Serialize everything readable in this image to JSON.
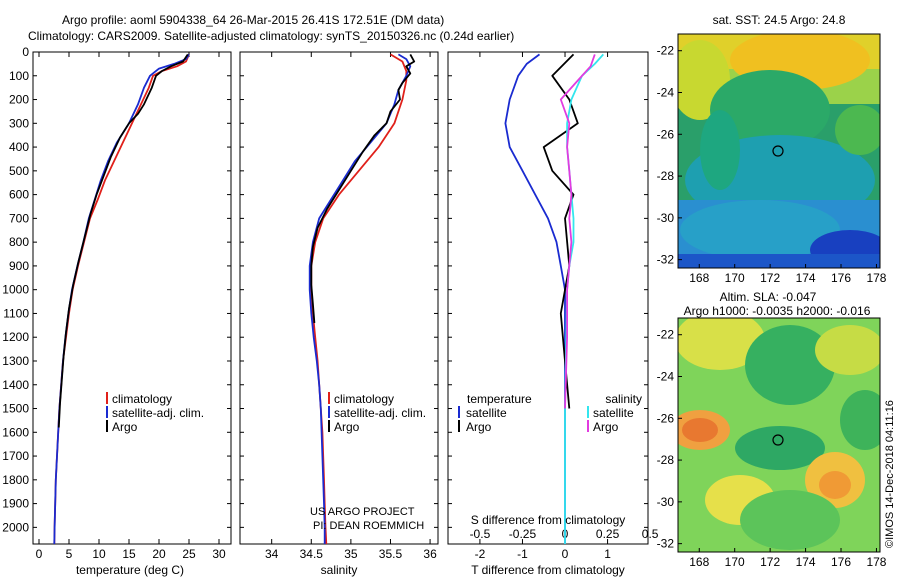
{
  "title": {
    "line1": "Argo profile: aoml 5904338_64 26-Mar-2015 26.41S 172.51E (DM data)",
    "line2": "Climatology: CARS2009. Satellite-adjusted climatology: synTS_20150326.nc (0.24d earlier)"
  },
  "watermark": "©IMOS 14-Dec-2018 04:11:16",
  "colors": {
    "climatology": "#e0201a",
    "satellite": "#1a2bd0",
    "argo": "#000000",
    "sat_salinity": "#33e6ee",
    "argo_salinity": "#e23be0"
  },
  "chart_data": [
    {
      "type": "line",
      "id": "temperature",
      "xlabel": "temperature (deg C)",
      "xlim": [
        -1,
        32
      ],
      "ylim": [
        2070,
        0
      ],
      "xticks": [
        0,
        5,
        10,
        15,
        20,
        25,
        30
      ],
      "yticks": [
        0,
        100,
        200,
        300,
        400,
        500,
        600,
        700,
        800,
        900,
        1000,
        1100,
        1200,
        1300,
        1400,
        1500,
        1600,
        1700,
        1800,
        1900,
        2000
      ],
      "legend": [
        "climatology",
        "satellite-adj. clim.",
        "Argo"
      ],
      "series": [
        {
          "name": "climatology",
          "color": "#e0201a",
          "points": [
            [
              25,
              10
            ],
            [
              24.5,
              40
            ],
            [
              23,
              60
            ],
            [
              20.5,
              80
            ],
            [
              19,
              100
            ],
            [
              18.3,
              150
            ],
            [
              17,
              220
            ],
            [
              15.5,
              300
            ],
            [
              14,
              380
            ],
            [
              12.5,
              460
            ],
            [
              11,
              540
            ],
            [
              9.8,
              620
            ],
            [
              8.5,
              700
            ],
            [
              7.5,
              800
            ],
            [
              6.5,
              900
            ],
            [
              5.6,
              1000
            ],
            [
              5,
              1100
            ],
            [
              4.5,
              1200
            ],
            [
              4,
              1300
            ],
            [
              3.7,
              1400
            ],
            [
              3.4,
              1500
            ],
            [
              3.2,
              1600
            ],
            [
              3,
              1700
            ],
            [
              2.8,
              1800
            ],
            [
              2.7,
              1900
            ],
            [
              2.6,
              2000
            ],
            [
              2.55,
              2070
            ]
          ]
        },
        {
          "name": "satellite",
          "color": "#1a2bd0",
          "points": [
            [
              25,
              10
            ],
            [
              24.5,
              30
            ],
            [
              22.5,
              50
            ],
            [
              20,
              70
            ],
            [
              18.5,
              100
            ],
            [
              17.5,
              150
            ],
            [
              16.5,
              220
            ],
            [
              15,
              300
            ],
            [
              13,
              380
            ],
            [
              11.5,
              460
            ],
            [
              10.3,
              540
            ],
            [
              9.3,
              620
            ],
            [
              8.3,
              700
            ],
            [
              7.4,
              800
            ],
            [
              6.4,
              900
            ],
            [
              5.5,
              1000
            ],
            [
              4.9,
              1100
            ],
            [
              4.4,
              1200
            ],
            [
              4,
              1300
            ],
            [
              3.7,
              1400
            ],
            [
              3.4,
              1500
            ],
            [
              3.2,
              1600
            ],
            [
              3,
              1700
            ],
            [
              2.8,
              1800
            ],
            [
              2.7,
              1900
            ],
            [
              2.6,
              2000
            ],
            [
              2.55,
              2070
            ]
          ]
        },
        {
          "name": "Argo",
          "color": "#000000",
          "points": [
            [
              24.8,
              10
            ],
            [
              24,
              40
            ],
            [
              22,
              60
            ],
            [
              20.5,
              80
            ],
            [
              19.5,
              100
            ],
            [
              18.8,
              150
            ],
            [
              17.5,
              220
            ],
            [
              16.5,
              260
            ],
            [
              15,
              300
            ],
            [
              13.5,
              360
            ],
            [
              12,
              440
            ],
            [
              10.8,
              520
            ],
            [
              9.6,
              600
            ],
            [
              8.6,
              680
            ],
            [
              7.6,
              780
            ],
            [
              6.6,
              880
            ],
            [
              5.7,
              980
            ],
            [
              5,
              1080
            ],
            [
              4.5,
              1180
            ],
            [
              4.1,
              1280
            ],
            [
              3.8,
              1380
            ],
            [
              3.5,
              1480
            ],
            [
              3.3,
              1580
            ]
          ]
        }
      ]
    },
    {
      "type": "line",
      "id": "salinity",
      "xlabel": "salinity",
      "xlim": [
        33.6,
        36.1
      ],
      "ylim": [
        2070,
        0
      ],
      "xticks": [
        34,
        34.5,
        35,
        35.5,
        36
      ],
      "legend": [
        "climatology",
        "satellite-adj. clim.",
        "Argo"
      ],
      "series": [
        {
          "name": "climatology",
          "color": "#e0201a",
          "points": [
            [
              35.5,
              10
            ],
            [
              35.65,
              40
            ],
            [
              35.7,
              80
            ],
            [
              35.7,
              120
            ],
            [
              35.65,
              200
            ],
            [
              35.55,
              300
            ],
            [
              35.35,
              400
            ],
            [
              35.1,
              500
            ],
            [
              34.85,
              600
            ],
            [
              34.65,
              700
            ],
            [
              34.55,
              800
            ],
            [
              34.5,
              900
            ],
            [
              34.5,
              1000
            ],
            [
              34.52,
              1100
            ],
            [
              34.55,
              1200
            ],
            [
              34.58,
              1300
            ],
            [
              34.6,
              1400
            ],
            [
              34.62,
              1500
            ],
            [
              34.64,
              1600
            ],
            [
              34.65,
              1700
            ],
            [
              34.66,
              1800
            ],
            [
              34.67,
              1900
            ],
            [
              34.68,
              2000
            ],
            [
              34.69,
              2070
            ]
          ]
        },
        {
          "name": "satellite",
          "color": "#1a2bd0",
          "points": [
            [
              35.6,
              10
            ],
            [
              35.7,
              30
            ],
            [
              35.75,
              60
            ],
            [
              35.7,
              100
            ],
            [
              35.6,
              160
            ],
            [
              35.55,
              220
            ],
            [
              35.45,
              300
            ],
            [
              35.25,
              380
            ],
            [
              35.05,
              460
            ],
            [
              34.9,
              540
            ],
            [
              34.75,
              620
            ],
            [
              34.6,
              700
            ],
            [
              34.52,
              800
            ],
            [
              34.48,
              900
            ],
            [
              34.48,
              1000
            ],
            [
              34.5,
              1100
            ],
            [
              34.53,
              1200
            ],
            [
              34.57,
              1300
            ],
            [
              34.6,
              1400
            ],
            [
              34.62,
              1500
            ],
            [
              34.63,
              1600
            ],
            [
              34.64,
              1700
            ],
            [
              34.65,
              1800
            ],
            [
              34.66,
              1900
            ],
            [
              34.67,
              2000
            ],
            [
              34.67,
              2070
            ]
          ]
        },
        {
          "name": "Argo",
          "color": "#000000",
          "points": [
            [
              35.75,
              10
            ],
            [
              35.8,
              40
            ],
            [
              35.7,
              60
            ],
            [
              35.75,
              90
            ],
            [
              35.65,
              130
            ],
            [
              35.6,
              160
            ],
            [
              35.62,
              200
            ],
            [
              35.5,
              250
            ],
            [
              35.45,
              300
            ],
            [
              35.3,
              350
            ],
            [
              35.15,
              420
            ],
            [
              35.0,
              500
            ],
            [
              34.85,
              580
            ],
            [
              34.7,
              660
            ],
            [
              34.58,
              740
            ],
            [
              34.52,
              820
            ],
            [
              34.5,
              900
            ],
            [
              34.5,
              980
            ],
            [
              34.52,
              1060
            ],
            [
              34.54,
              1140
            ]
          ]
        }
      ]
    },
    {
      "type": "line",
      "id": "difference",
      "xlabel": "T difference from climatology",
      "xlabel2": "S difference from climatology",
      "xlim": [
        -2.75,
        1.95
      ],
      "ylim": [
        2070,
        0
      ],
      "xticks": [
        -2,
        -1,
        0,
        1
      ],
      "xticks_s": [
        {
          "pos": -2,
          "label": "-0.5"
        },
        {
          "pos": -1,
          "label": "-0.25"
        },
        {
          "pos": 0,
          "label": "0"
        },
        {
          "pos": 1,
          "label": "0.25"
        },
        {
          "pos": 2,
          "label": "0.5"
        }
      ],
      "legend_temperature": {
        "title": "temperature",
        "items": [
          "satellite",
          "Argo"
        ]
      },
      "legend_salinity": {
        "title": "salinity",
        "items": [
          "satellite",
          "Argo"
        ]
      },
      "series": [
        {
          "name": "T satellite",
          "color": "#1a2bd0",
          "points": [
            [
              -0.6,
              10
            ],
            [
              -0.9,
              50
            ],
            [
              -1.1,
              100
            ],
            [
              -1.3,
              200
            ],
            [
              -1.4,
              300
            ],
            [
              -1.3,
              400
            ],
            [
              -1.0,
              500
            ],
            [
              -0.7,
              600
            ],
            [
              -0.4,
              700
            ],
            [
              -0.2,
              800
            ],
            [
              -0.1,
              900
            ],
            [
              0,
              1000
            ],
            [
              0,
              2070
            ]
          ]
        },
        {
          "name": "T Argo",
          "color": "#000000",
          "points": [
            [
              0.2,
              10
            ],
            [
              -0.3,
              100
            ],
            [
              0.1,
              200
            ],
            [
              0.3,
              300
            ],
            [
              -0.5,
              400
            ],
            [
              -0.3,
              500
            ],
            [
              0.2,
              600
            ],
            [
              0,
              700
            ],
            [
              0.1,
              900
            ],
            [
              -0.1,
              1100
            ],
            [
              0,
              1300
            ],
            [
              0.1,
              1500
            ]
          ]
        },
        {
          "name": "S satellite",
          "color": "#33e6ee",
          "points": [
            [
              0.9,
              10
            ],
            [
              0.7,
              50
            ],
            [
              0.4,
              100
            ],
            [
              0.15,
              200
            ],
            [
              0.05,
              300
            ],
            [
              0.05,
              400
            ],
            [
              0.1,
              500
            ],
            [
              0.15,
              600
            ],
            [
              0.2,
              700
            ],
            [
              0.2,
              800
            ],
            [
              0.1,
              900
            ],
            [
              0.05,
              1000
            ],
            [
              0,
              1500
            ],
            [
              0,
              2070
            ]
          ]
        },
        {
          "name": "S Argo",
          "color": "#e23be0",
          "points": [
            [
              0.7,
              10
            ],
            [
              0.6,
              60
            ],
            [
              0.3,
              120
            ],
            [
              -0.1,
              200
            ],
            [
              0.1,
              300
            ],
            [
              0.05,
              400
            ],
            [
              0.1,
              500
            ],
            [
              0.15,
              600
            ],
            [
              0.1,
              700
            ],
            [
              0.15,
              800
            ],
            [
              0.05,
              1000
            ],
            [
              0.05,
              1200
            ],
            [
              0,
              1500
            ]
          ]
        }
      ]
    },
    {
      "type": "heatmap",
      "id": "sst-map",
      "title": "sat. SST: 24.5 Argo: 24.8",
      "xticks": [
        168,
        170,
        172,
        174,
        176,
        178
      ],
      "yticks": [
        -22,
        -24,
        -26,
        -28,
        -30,
        -32
      ],
      "marker": [
        172.51,
        -26.41
      ]
    },
    {
      "type": "heatmap",
      "id": "sla-map",
      "title": "Altim. SLA: -0.047",
      "subtitle": "Argo h1000: -0.0035 h2000: -0.016",
      "xticks": [
        168,
        170,
        172,
        174,
        176,
        178
      ],
      "yticks": [
        -22,
        -24,
        -26,
        -28,
        -30,
        -32
      ],
      "marker": [
        172.51,
        -26.41
      ]
    }
  ],
  "credits": {
    "line1": "US ARGO PROJECT",
    "line2": "PI: DEAN ROEMMICH"
  }
}
